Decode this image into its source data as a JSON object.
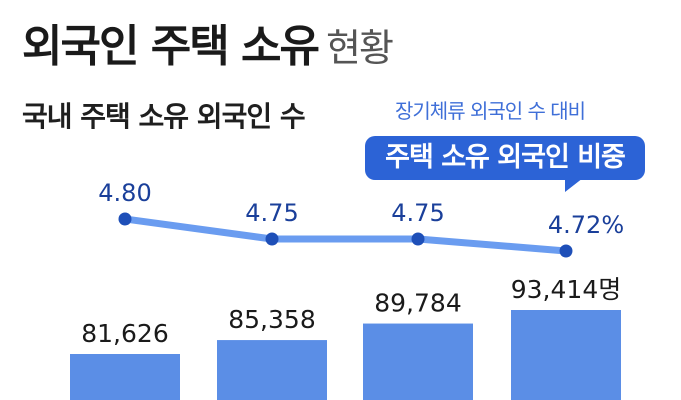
{
  "title": {
    "main": "외국인 주택 소유",
    "sub": "현황"
  },
  "subtitle": "국내 주택 소유 외국인 수",
  "legend": {
    "caption": "장기체류 외국인 수 대비",
    "badge": "주택 소유 외국인 비중"
  },
  "chart_data": {
    "type": "bar",
    "categories": [
      "",
      "",
      "",
      ""
    ],
    "series": [
      {
        "type": "bar",
        "values": [
          81626,
          85358,
          89784,
          93414
        ],
        "labels": [
          "81,626",
          "85,358",
          "89,784",
          "93,414명"
        ]
      },
      {
        "type": "line",
        "values": [
          4.8,
          4.75,
          4.75,
          4.72
        ],
        "labels": [
          "4.80",
          "4.75",
          "4.75",
          "4.72%"
        ]
      }
    ]
  },
  "colors": {
    "bar": "#5b8ee6",
    "line": "#6a9cf0",
    "dot": "#1e4fb8",
    "accent": "#2c63d6"
  }
}
